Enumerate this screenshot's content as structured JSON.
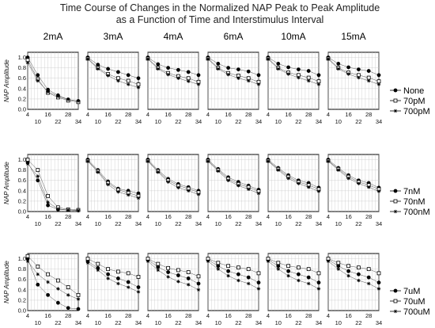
{
  "title_line1": "Time Course of Changes in the Normalized NAP Peak to Peak Amplitude",
  "title_line2": "as a Function of Time and Interstimulus Interval",
  "column_headers": [
    "2mA",
    "3mA",
    "4mA",
    "6mA",
    "10mA",
    "15mA"
  ],
  "ylabel": "NAP Amplitude",
  "x_ticks_top": [
    "4",
    "16",
    "28"
  ],
  "x_ticks_bottom": [
    "10",
    "22",
    "34"
  ],
  "y_ticks": [
    "0.0",
    "0.2",
    "0.4",
    "0.6",
    "0.8",
    "1.0"
  ],
  "legends": [
    [
      "None",
      "70pM",
      "700pM"
    ],
    [
      "7nM",
      "70nM",
      "700nM"
    ],
    [
      "7uM",
      "70uM",
      "700uM"
    ]
  ],
  "chart_data": {
    "type": "scatter",
    "layout": "3 rows x 6 columns of panels",
    "x_range": [
      4,
      34
    ],
    "y_range": [
      0,
      1.1
    ],
    "x": [
      4,
      10,
      16,
      22,
      28,
      34
    ],
    "marker_styles": [
      "filled-circle",
      "open-square",
      "asterisk"
    ],
    "rows": [
      {
        "series_names": [
          "None",
          "70pM",
          "700pM"
        ],
        "panels": [
          {
            "column": "2mA",
            "series": [
              [
                1.0,
                0.66,
                0.38,
                0.27,
                0.19,
                0.16
              ],
              [
                0.95,
                0.58,
                0.32,
                0.23,
                0.17,
                0.14
              ],
              [
                0.9,
                0.55,
                0.34,
                0.25,
                0.19,
                0.16
              ]
            ]
          },
          {
            "column": "3mA",
            "series": [
              [
                1.0,
                0.86,
                0.78,
                0.72,
                0.66,
                0.6
              ],
              [
                0.98,
                0.8,
                0.68,
                0.6,
                0.55,
                0.48
              ],
              [
                0.97,
                0.78,
                0.65,
                0.55,
                0.48,
                0.42
              ]
            ]
          },
          {
            "column": "4mA",
            "series": [
              [
                1.0,
                0.87,
                0.8,
                0.76,
                0.72,
                0.66
              ],
              [
                0.98,
                0.8,
                0.7,
                0.64,
                0.6,
                0.53
              ],
              [
                0.97,
                0.78,
                0.67,
                0.6,
                0.54,
                0.48
              ]
            ]
          },
          {
            "column": "6mA",
            "series": [
              [
                1.0,
                0.88,
                0.8,
                0.77,
                0.73,
                0.66
              ],
              [
                0.98,
                0.8,
                0.7,
                0.65,
                0.6,
                0.53
              ],
              [
                0.97,
                0.78,
                0.67,
                0.6,
                0.55,
                0.48
              ]
            ]
          },
          {
            "column": "10mA",
            "series": [
              [
                1.0,
                0.88,
                0.81,
                0.77,
                0.74,
                0.66
              ],
              [
                0.98,
                0.8,
                0.71,
                0.66,
                0.61,
                0.54
              ],
              [
                0.97,
                0.78,
                0.68,
                0.61,
                0.55,
                0.48
              ]
            ]
          },
          {
            "column": "15mA",
            "series": [
              [
                1.0,
                0.88,
                0.81,
                0.77,
                0.74,
                0.66
              ],
              [
                0.98,
                0.8,
                0.71,
                0.66,
                0.61,
                0.54
              ],
              [
                0.97,
                0.78,
                0.68,
                0.61,
                0.55,
                0.48
              ]
            ]
          }
        ]
      },
      {
        "series_names": [
          "7nM",
          "70nM",
          "700nM"
        ],
        "panels": [
          {
            "column": "2mA",
            "series": [
              [
                0.95,
                0.6,
                0.12,
                0.04,
                0.03,
                0.02
              ],
              [
                1.0,
                0.8,
                0.3,
                0.08,
                0.04,
                0.03
              ],
              [
                0.92,
                0.68,
                0.18,
                0.05,
                0.03,
                0.02
              ]
            ]
          },
          {
            "column": "3mA",
            "series": [
              [
                1.0,
                0.8,
                0.58,
                0.44,
                0.4,
                0.35
              ],
              [
                0.98,
                0.78,
                0.55,
                0.42,
                0.36,
                0.3
              ],
              [
                0.97,
                0.76,
                0.52,
                0.38,
                0.32,
                0.26
              ]
            ]
          },
          {
            "column": "4mA",
            "series": [
              [
                1.0,
                0.8,
                0.63,
                0.53,
                0.47,
                0.4
              ],
              [
                0.98,
                0.78,
                0.6,
                0.5,
                0.44,
                0.37
              ],
              [
                0.97,
                0.76,
                0.57,
                0.46,
                0.4,
                0.33
              ]
            ]
          },
          {
            "column": "6mA",
            "series": [
              [
                1.0,
                0.82,
                0.66,
                0.57,
                0.5,
                0.42
              ],
              [
                0.98,
                0.8,
                0.63,
                0.53,
                0.47,
                0.39
              ],
              [
                0.97,
                0.78,
                0.6,
                0.5,
                0.43,
                0.35
              ]
            ]
          },
          {
            "column": "10mA",
            "series": [
              [
                1.0,
                0.84,
                0.7,
                0.6,
                0.55,
                0.46
              ],
              [
                0.98,
                0.82,
                0.67,
                0.57,
                0.51,
                0.43
              ],
              [
                0.97,
                0.8,
                0.64,
                0.54,
                0.47,
                0.39
              ]
            ]
          },
          {
            "column": "15mA",
            "series": [
              [
                1.0,
                0.84,
                0.7,
                0.6,
                0.55,
                0.46
              ],
              [
                0.98,
                0.82,
                0.67,
                0.57,
                0.51,
                0.43
              ],
              [
                0.97,
                0.8,
                0.64,
                0.54,
                0.47,
                0.39
              ]
            ]
          }
        ]
      },
      {
        "series_names": [
          "7uM",
          "70uM",
          "700uM"
        ],
        "panels": [
          {
            "column": "2mA",
            "series": [
              [
                1.0,
                0.5,
                0.3,
                0.15,
                0.05,
                0.03
              ],
              [
                1.05,
                0.85,
                0.7,
                0.58,
                0.45,
                0.3
              ],
              [
                0.95,
                0.7,
                0.55,
                0.42,
                0.3,
                0.22
              ]
            ]
          },
          {
            "column": "3mA",
            "series": [
              [
                0.95,
                0.82,
                0.7,
                0.62,
                0.55,
                0.45
              ],
              [
                1.0,
                0.9,
                0.8,
                0.75,
                0.72,
                0.65
              ],
              [
                0.92,
                0.78,
                0.62,
                0.52,
                0.45,
                0.36
              ]
            ]
          },
          {
            "column": "4mA",
            "series": [
              [
                0.98,
                0.84,
                0.74,
                0.68,
                0.62,
                0.52
              ],
              [
                1.0,
                0.9,
                0.82,
                0.78,
                0.74,
                0.66
              ],
              [
                0.95,
                0.78,
                0.65,
                0.56,
                0.5,
                0.4
              ]
            ]
          },
          {
            "column": "6mA",
            "series": [
              [
                0.98,
                0.86,
                0.76,
                0.7,
                0.64,
                0.54
              ],
              [
                1.0,
                0.92,
                0.86,
                0.83,
                0.8,
                0.72
              ],
              [
                0.95,
                0.8,
                0.67,
                0.58,
                0.52,
                0.42
              ]
            ]
          },
          {
            "column": "10mA",
            "series": [
              [
                0.98,
                0.86,
                0.76,
                0.7,
                0.64,
                0.54
              ],
              [
                1.0,
                0.92,
                0.86,
                0.83,
                0.8,
                0.72
              ],
              [
                0.95,
                0.8,
                0.67,
                0.58,
                0.52,
                0.42
              ]
            ]
          },
          {
            "column": "15mA",
            "series": [
              [
                0.98,
                0.86,
                0.76,
                0.7,
                0.64,
                0.54
              ],
              [
                1.0,
                0.92,
                0.86,
                0.83,
                0.8,
                0.72
              ],
              [
                0.95,
                0.8,
                0.67,
                0.58,
                0.52,
                0.42
              ]
            ]
          }
        ]
      }
    ]
  }
}
